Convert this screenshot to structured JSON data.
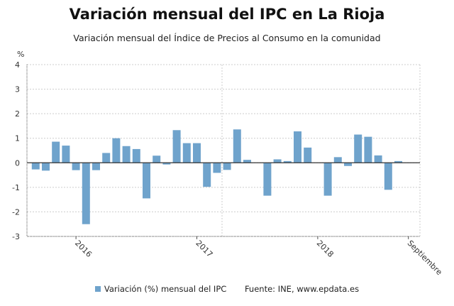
{
  "chart_data": {
    "type": "bar",
    "title": "Variación mensual del IPC en La Rioja",
    "subtitle": "Variación mensual del Índice de Precios al Consumo en la comunidad",
    "ylabel": "%",
    "ylim": [
      -3,
      4
    ],
    "yticks": [
      -3,
      -2,
      -1,
      0,
      1,
      2,
      3,
      4
    ],
    "grid": true,
    "legend_position": "bottom",
    "xtick_labels": [
      {
        "index": 4,
        "label": "2016"
      },
      {
        "index": 16,
        "label": "2017"
      },
      {
        "index": 28,
        "label": "2018"
      },
      {
        "index": 37,
        "label": "Septiembre"
      }
    ],
    "series": [
      {
        "name": "Variación (%) mensual del IPC",
        "color": "#6fa3cc",
        "values": [
          -0.27,
          -0.32,
          0.86,
          0.7,
          -0.3,
          -2.5,
          -0.3,
          0.4,
          1.0,
          0.68,
          0.56,
          -1.45,
          0.29,
          -0.07,
          1.33,
          0.8,
          0.8,
          -0.98,
          -0.41,
          -0.29,
          1.36,
          0.12,
          0.0,
          -1.34,
          0.14,
          0.07,
          1.28,
          0.62,
          0.0,
          -1.34,
          0.23,
          -0.13,
          1.15,
          1.06,
          0.3,
          -1.1,
          0.07,
          0.0
        ]
      }
    ],
    "source": "Fuente: INE, www.epdata.es"
  }
}
